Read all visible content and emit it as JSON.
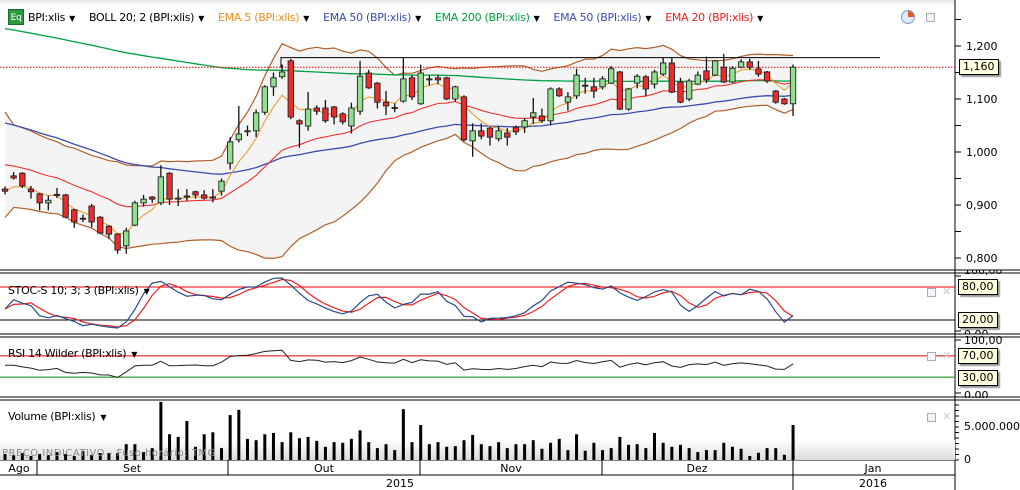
{
  "legend": {
    "symbol": "BPI:xlis",
    "indicators": [
      {
        "label": "BOLL 20; 2 (BPI:xlis)",
        "color": "#000000"
      },
      {
        "label": "EMA 5 (BPI:xlis)",
        "color": "#e8901a"
      },
      {
        "label": "EMA 50 (BPI:xlis)",
        "color": "#3a4cb0"
      },
      {
        "label": "EMA 200 (BPI:xlis)",
        "color": "#00a040"
      },
      {
        "label": "EMA 50 (BPI:xlis)",
        "color": "#3a4cb0"
      },
      {
        "label": "EMA 20 (BPI:xlis)",
        "color": "#ee1c1c"
      }
    ],
    "eq_icon": "Eq"
  },
  "colors": {
    "up": "#90e090",
    "down": "#ee2a2a",
    "boll": "#b0602a",
    "boll_fill": "#f4f4f4",
    "ema5": "#e8a030",
    "ema20": "#f03030",
    "ema50": "#3a4cb0",
    "ema200": "#00a040",
    "stoch_k": "#2a4a8a",
    "stoch_d": "#f02020",
    "rsi": "#222222"
  },
  "price_axis": {
    "ticks": [
      "1,200",
      "1,100",
      "1,000",
      "0,900",
      "0,800"
    ],
    "tick_values": [
      1.2,
      1.1,
      1.0,
      0.9,
      0.8
    ],
    "last_price": "1,160",
    "last_value": 1.16,
    "resistance_value": 1.178
  },
  "stoch": {
    "label": "STOC-S 10; 3; 3 (BPI:xlis)",
    "upper": "80,00",
    "lower": "20,00",
    "max": "100,00",
    "min": "0,00"
  },
  "rsi": {
    "label": "RSI 14 Wilder (BPI:xlis)",
    "upper": "70,00",
    "lower": "30,00",
    "max": "100,00",
    "min": "0,00"
  },
  "volume": {
    "label": "Volume (BPI:xlis)",
    "tick_high": "5.000.000",
    "tick_zero": "0"
  },
  "watermark": "PREÇO INDICATIVO - Fuso horário: TMG",
  "time_axis": {
    "months": [
      "Ago",
      "Set",
      "Out",
      "Nov",
      "Dez",
      "Jan"
    ],
    "years": [
      "2015",
      "2016"
    ]
  },
  "chart_data": {
    "type": "candlestick",
    "fields": [
      "open",
      "high",
      "low",
      "close",
      "volume"
    ],
    "candles": [
      [
        0.93,
        0.935,
        0.92,
        0.926,
        900000
      ],
      [
        0.955,
        0.962,
        0.948,
        0.951,
        750000
      ],
      [
        0.96,
        0.962,
        0.932,
        0.936,
        1050000
      ],
      [
        0.93,
        0.936,
        0.912,
        0.925,
        600000
      ],
      [
        0.921,
        0.923,
        0.89,
        0.904,
        900000
      ],
      [
        0.904,
        0.918,
        0.89,
        0.909,
        750000
      ],
      [
        0.92,
        0.932,
        0.913,
        0.918,
        1200000
      ],
      [
        0.919,
        0.921,
        0.875,
        0.877,
        900000
      ],
      [
        0.891,
        0.893,
        0.857,
        0.868,
        600000
      ],
      [
        0.875,
        0.882,
        0.868,
        0.874,
        1350000
      ],
      [
        0.898,
        0.902,
        0.858,
        0.868,
        750000
      ],
      [
        0.877,
        0.879,
        0.845,
        0.847,
        1050000
      ],
      [
        0.86,
        0.862,
        0.836,
        0.845,
        1050000
      ],
      [
        0.845,
        0.847,
        0.808,
        0.815,
        1050000
      ],
      [
        0.823,
        0.857,
        0.808,
        0.851,
        2400000
      ],
      [
        0.862,
        0.908,
        0.86,
        0.904,
        2400000
      ],
      [
        0.904,
        0.919,
        0.897,
        0.911,
        1200000
      ],
      [
        0.915,
        0.917,
        0.904,
        0.911,
        1800000
      ],
      [
        0.904,
        0.975,
        0.9,
        0.953,
        8800000
      ],
      [
        0.96,
        0.962,
        0.9,
        0.911,
        3900000
      ],
      [
        0.912,
        0.93,
        0.898,
        0.913,
        3500000
      ],
      [
        0.916,
        0.93,
        0.908,
        0.917,
        5900000
      ],
      [
        0.925,
        0.927,
        0.912,
        0.919,
        2000000
      ],
      [
        0.919,
        0.928,
        0.91,
        0.913,
        3900000
      ],
      [
        0.915,
        0.93,
        0.905,
        0.913,
        4200000
      ],
      [
        0.926,
        0.95,
        0.918,
        0.945,
        1800000
      ],
      [
        0.979,
        1.028,
        0.967,
        1.019,
        6800000
      ],
      [
        1.023,
        1.087,
        1.018,
        1.034,
        7600000
      ],
      [
        1.04,
        1.05,
        1.03,
        1.04,
        3200000
      ],
      [
        1.04,
        1.08,
        1.028,
        1.074,
        3000000
      ],
      [
        1.075,
        1.126,
        1.07,
        1.123,
        3900000
      ],
      [
        1.123,
        1.15,
        1.106,
        1.14,
        4100000
      ],
      [
        1.142,
        1.165,
        1.138,
        1.151,
        2700000
      ],
      [
        1.172,
        1.176,
        1.062,
        1.066,
        4200000
      ],
      [
        1.059,
        1.062,
        1.008,
        1.053,
        3300000
      ],
      [
        1.049,
        1.113,
        1.04,
        1.081,
        3500000
      ],
      [
        1.083,
        1.088,
        1.07,
        1.077,
        2900000
      ],
      [
        1.083,
        1.098,
        1.055,
        1.059,
        2000000
      ],
      [
        1.085,
        1.087,
        1.052,
        1.066,
        2700000
      ],
      [
        1.072,
        1.075,
        1.052,
        1.057,
        2600000
      ],
      [
        1.049,
        1.093,
        1.035,
        1.083,
        3200000
      ],
      [
        1.077,
        1.172,
        1.07,
        1.143,
        4500000
      ],
      [
        1.149,
        1.155,
        1.119,
        1.121,
        2700000
      ],
      [
        1.13,
        1.132,
        1.082,
        1.094,
        1800000
      ],
      [
        1.094,
        1.115,
        1.07,
        1.087,
        2400000
      ],
      [
        1.084,
        1.092,
        1.075,
        1.083,
        1500000
      ],
      [
        1.096,
        1.177,
        1.093,
        1.138,
        7700000
      ],
      [
        1.14,
        1.145,
        1.098,
        1.104,
        2700000
      ],
      [
        1.091,
        1.165,
        1.089,
        1.149,
        5300000
      ],
      [
        1.138,
        1.145,
        1.125,
        1.138,
        2400000
      ],
      [
        1.14,
        1.145,
        1.128,
        1.136,
        2700000
      ],
      [
        1.14,
        1.142,
        1.098,
        1.1,
        2000000
      ],
      [
        1.1,
        1.125,
        1.095,
        1.123,
        2100000
      ],
      [
        1.104,
        1.107,
        1.02,
        1.023,
        3000000
      ],
      [
        1.021,
        1.054,
        0.991,
        1.04,
        3800000
      ],
      [
        1.04,
        1.054,
        1.024,
        1.03,
        2400000
      ],
      [
        1.045,
        1.048,
        1.012,
        1.028,
        2100000
      ],
      [
        1.025,
        1.048,
        1.02,
        1.04,
        2700000
      ],
      [
        1.036,
        1.045,
        1.012,
        1.028,
        1800000
      ],
      [
        1.047,
        1.05,
        1.032,
        1.038,
        2400000
      ],
      [
        1.047,
        1.064,
        1.036,
        1.059,
        2400000
      ],
      [
        1.066,
        1.102,
        1.053,
        1.074,
        3000000
      ],
      [
        1.068,
        1.082,
        1.055,
        1.059,
        1700000
      ],
      [
        1.059,
        1.122,
        1.05,
        1.119,
        2600000
      ],
      [
        1.119,
        1.122,
        1.104,
        1.106,
        3200000
      ],
      [
        1.094,
        1.113,
        1.078,
        1.104,
        1500000
      ],
      [
        1.106,
        1.157,
        1.1,
        1.145,
        3900000
      ],
      [
        1.126,
        1.14,
        1.11,
        1.125,
        1400000
      ],
      [
        1.123,
        1.14,
        1.102,
        1.115,
        2600000
      ],
      [
        1.123,
        1.143,
        1.118,
        1.138,
        1500000
      ],
      [
        1.13,
        1.162,
        1.128,
        1.157,
        1800000
      ],
      [
        1.151,
        1.153,
        1.079,
        1.081,
        3500000
      ],
      [
        1.081,
        1.121,
        1.078,
        1.119,
        2300000
      ],
      [
        1.13,
        1.147,
        1.12,
        1.143,
        2400000
      ],
      [
        1.142,
        1.145,
        1.105,
        1.119,
        1800000
      ],
      [
        1.128,
        1.155,
        1.12,
        1.151,
        4100000
      ],
      [
        1.147,
        1.178,
        1.144,
        1.168,
        2600000
      ],
      [
        1.168,
        1.178,
        1.111,
        1.113,
        2000000
      ],
      [
        1.132,
        1.14,
        1.092,
        1.094,
        2300000
      ],
      [
        1.1,
        1.138,
        1.096,
        1.134,
        1800000
      ],
      [
        1.128,
        1.152,
        1.126,
        1.145,
        1200000
      ],
      [
        1.153,
        1.18,
        1.13,
        1.136,
        1500000
      ],
      [
        1.145,
        1.174,
        1.143,
        1.172,
        1500000
      ],
      [
        1.16,
        1.185,
        1.13,
        1.132,
        2600000
      ],
      [
        1.132,
        1.162,
        1.13,
        1.158,
        2000000
      ],
      [
        1.16,
        1.175,
        1.158,
        1.17,
        1700000
      ],
      [
        1.17,
        1.176,
        1.155,
        1.16,
        600000
      ],
      [
        1.157,
        1.172,
        1.142,
        1.147,
        1100000
      ],
      [
        1.151,
        1.153,
        1.13,
        1.134,
        1800000
      ],
      [
        1.115,
        1.117,
        1.091,
        1.094,
        1800000
      ],
      [
        1.1,
        1.102,
        1.089,
        1.091,
        800000
      ],
      [
        1.091,
        1.165,
        1.068,
        1.16,
        5300000
      ]
    ],
    "price_range": [
      0.77,
      1.29
    ],
    "stoch_levels": [
      20,
      80
    ],
    "rsi_levels": [
      30,
      70
    ],
    "volume_max_tick": 5000000
  }
}
